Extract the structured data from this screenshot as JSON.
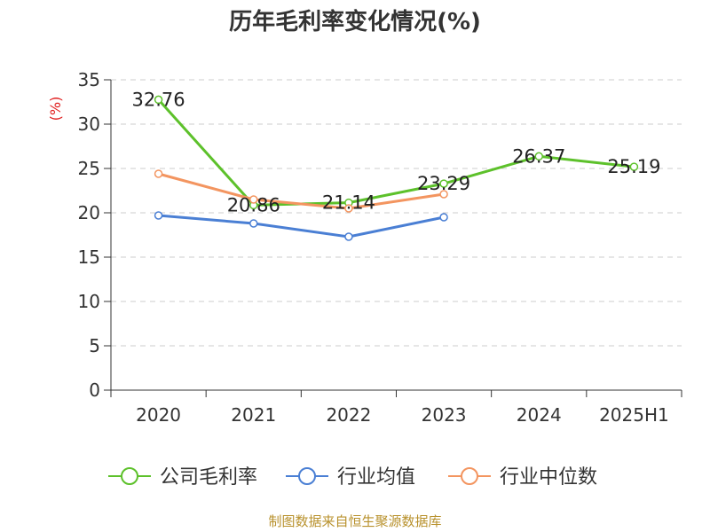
{
  "chart_data": {
    "type": "line",
    "title": "历年毛利率变化情况(%)",
    "ylabel": "(%)",
    "ylim": [
      0,
      35
    ],
    "yticks": [
      0,
      5,
      10,
      15,
      20,
      25,
      30,
      35
    ],
    "grid": true,
    "legend_position": "bottom",
    "categories": [
      "2020",
      "2021",
      "2022",
      "2023",
      "2024",
      "2025H1"
    ],
    "series": [
      {
        "name": "公司毛利率",
        "color": "#5dc12b",
        "values": [
          32.76,
          20.86,
          21.14,
          23.29,
          26.37,
          25.19
        ],
        "labels": [
          "32.76",
          "20.86",
          "21.14",
          "23.29",
          "26.37",
          "25.19"
        ]
      },
      {
        "name": "行业均值",
        "color": "#4a7fd4",
        "values": [
          19.7,
          18.8,
          17.3,
          19.5,
          null,
          null
        ]
      },
      {
        "name": "行业中位数",
        "color": "#f39560",
        "values": [
          24.4,
          21.5,
          20.5,
          22.1,
          null,
          null
        ]
      }
    ]
  },
  "source": "制图数据来自恒生聚源数据库"
}
